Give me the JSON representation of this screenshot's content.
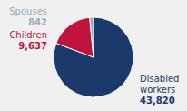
{
  "chart_data": {
    "type": "pie",
    "categories": [
      "Disabled workers",
      "Children",
      "Spouses"
    ],
    "values": [
      43820,
      9637,
      842
    ],
    "value_labels": [
      "43,820",
      "9,637",
      "842"
    ],
    "colors": [
      "#1b3a6b",
      "#c0133e",
      "#9baab8"
    ],
    "data_labels": true
  }
}
